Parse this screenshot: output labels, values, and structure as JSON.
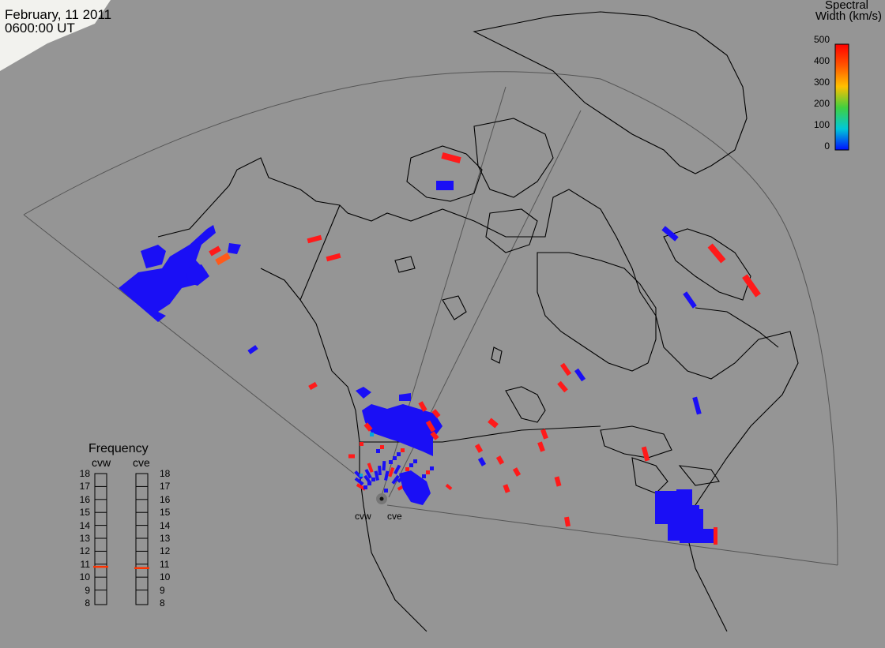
{
  "header": {
    "date": "February, 11 2011",
    "time": "0600:00 UT"
  },
  "colorbar": {
    "title_line1": "Spectral",
    "title_line2": "Width (km/s)",
    "ticks": [
      "500",
      "400",
      "300",
      "200",
      "100",
      "0"
    ],
    "colors": [
      "#ff0000",
      "#ff8800",
      "#ffe000",
      "#40e040",
      "#00d0d0",
      "#0000ff"
    ]
  },
  "frequency_panel": {
    "title": "Frequency",
    "radars": [
      {
        "name": "cvw",
        "frequency_mhz": 10.8
      },
      {
        "name": "cve",
        "frequency_mhz": 10.7
      }
    ],
    "scale_labels": [
      "18",
      "17",
      "16",
      "15",
      "14",
      "13",
      "12",
      "11",
      "10",
      "9",
      "8"
    ],
    "marker_color": "#ff3300"
  },
  "sites": {
    "west": "cvw",
    "east": "cve"
  },
  "colors": {
    "background": "#959595",
    "coastline": "#000000",
    "fov_outline": "#555555",
    "low_width": "#1a0ff5",
    "high_width": "#ff1a1a",
    "mid_width": "#ff5a1a"
  }
}
